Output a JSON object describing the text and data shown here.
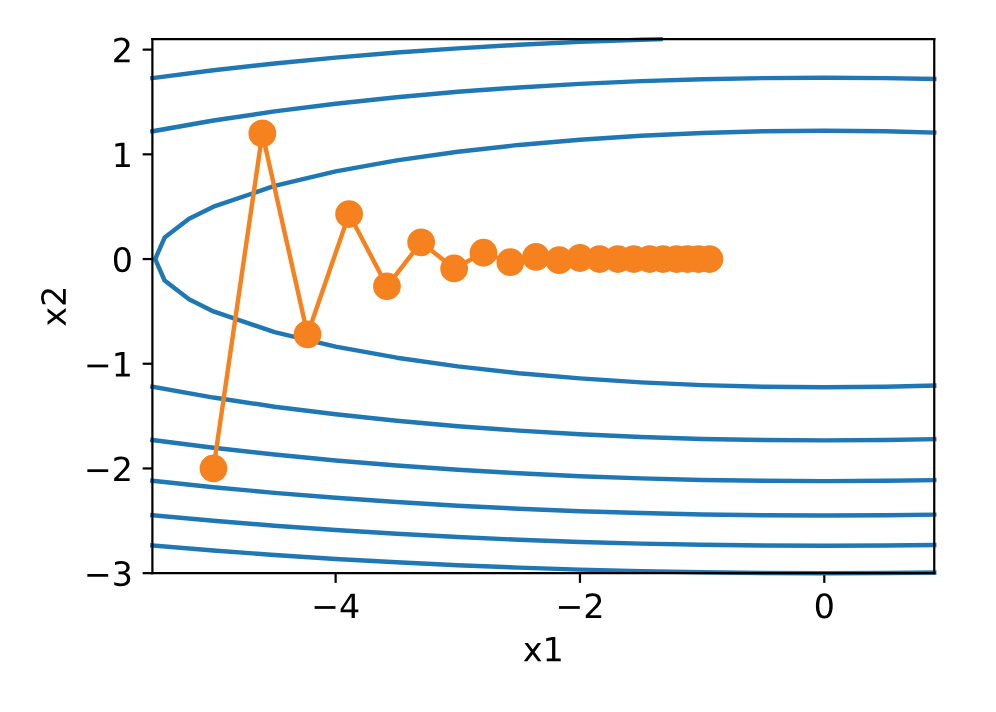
{
  "chart_data": {
    "type": "line",
    "xlabel": "x1",
    "ylabel": "x2",
    "xlim": [
      -5.5,
      0.9
    ],
    "ylim": [
      -3,
      2.1
    ],
    "xticks": [
      {
        "value": -4,
        "label": "−4"
      },
      {
        "value": -2,
        "label": "−2"
      },
      0
    ],
    "yticks": [
      {
        "value": -3,
        "label": "−3"
      },
      {
        "value": -2,
        "label": "−2"
      },
      {
        "value": -1,
        "label": "−1"
      },
      0,
      1,
      2
    ],
    "grid": false,
    "legend": false,
    "line_style": "solid",
    "series": [
      {
        "color": "#1f77b4",
        "marker": "none",
        "x": [
          0.9,
          0.5,
          0,
          -0.5,
          -1,
          -1.5,
          -2,
          -2.5,
          -3,
          -3.5,
          -4,
          -4.5,
          -5,
          -5.2,
          -5.4,
          -5.477,
          -5.4,
          -5.2,
          -5,
          -4.5,
          -4,
          -3.5,
          -3,
          -2.5,
          -2,
          -1.5,
          -1,
          -0.5,
          0,
          0.5,
          0.9
        ],
        "values": [
          1.208,
          1.22,
          1.225,
          1.22,
          1.204,
          1.178,
          1.14,
          1.09,
          1.025,
          0.942,
          0.837,
          0.698,
          0.5,
          0.385,
          0.205,
          0,
          -0.205,
          -0.385,
          -0.5,
          -0.698,
          -0.837,
          -0.942,
          -1.025,
          -1.09,
          -1.14,
          -1.178,
          -1.204,
          -1.22,
          -1.225,
          -1.22,
          -1.208
        ]
      },
      {
        "color": "#1f77b4",
        "marker": "none",
        "x": [
          -5.5,
          -5,
          -4.5,
          -4,
          -3.5,
          -3,
          -2.5,
          -2,
          -1.5,
          -1,
          -0.5,
          0,
          0.5,
          0.9
        ],
        "values": [
          1.22,
          1.323,
          1.41,
          1.483,
          1.545,
          1.597,
          1.639,
          1.673,
          1.699,
          1.718,
          1.728,
          1.732,
          1.728,
          1.72
        ]
      },
      {
        "color": "#1f77b4",
        "marker": "none",
        "x": [
          -5.5,
          -5,
          -4.5,
          -4,
          -3.5,
          -3,
          -2.5,
          -2,
          -1.5,
          -1,
          -0.5,
          0,
          0.5,
          0.9
        ],
        "values": [
          -1.22,
          -1.323,
          -1.41,
          -1.483,
          -1.545,
          -1.597,
          -1.639,
          -1.673,
          -1.699,
          -1.718,
          -1.728,
          -1.732,
          -1.728,
          -1.72
        ]
      },
      {
        "color": "#1f77b4",
        "marker": "none",
        "x": [
          -5.5,
          -5,
          -4.5,
          -4,
          -3.5,
          -3,
          -2.5,
          -2,
          -1.5,
          -1.34
        ],
        "values": [
          1.728,
          1.803,
          1.867,
          1.924,
          1.972,
          2.012,
          2.046,
          2.074,
          2.095,
          2.1
        ]
      },
      {
        "color": "#1f77b4",
        "marker": "none",
        "x": [
          -5.5,
          -5,
          -4.5,
          -4,
          -3.5,
          -3,
          -2.5,
          -2,
          -1.5,
          -1,
          -0.5,
          0,
          0.5,
          0.9
        ],
        "values": [
          -1.728,
          -1.803,
          -1.867,
          -1.924,
          -1.972,
          -2.012,
          -2.046,
          -2.074,
          -2.095,
          -2.11,
          -2.118,
          -2.121,
          -2.118,
          -2.112
        ]
      },
      {
        "color": "#1f77b4",
        "marker": "none",
        "x": [
          -5.5,
          -5,
          -4.5,
          -4,
          -3.5,
          -3,
          -2.5,
          -2,
          -1.5,
          -1,
          -0.5,
          0,
          0.5,
          0.9
        ],
        "values": [
          -2.118,
          -2.179,
          -2.233,
          -2.28,
          -2.321,
          -2.356,
          -2.385,
          -2.408,
          -2.426,
          -2.439,
          -2.447,
          -2.449,
          -2.447,
          -2.441
        ]
      },
      {
        "color": "#1f77b4",
        "marker": "none",
        "x": [
          -5.5,
          -5,
          -4.5,
          -4,
          -3.5,
          -3,
          -2.5,
          -2,
          -1.5,
          -1,
          -0.5,
          0,
          0.5,
          0.9
        ],
        "values": [
          -2.447,
          -2.5,
          -2.547,
          -2.588,
          -2.624,
          -2.655,
          -2.681,
          -2.702,
          -2.718,
          -2.729,
          -2.736,
          -2.739,
          -2.736,
          -2.731
        ]
      },
      {
        "color": "#1f77b4",
        "marker": "none",
        "x": [
          -5.5,
          -5,
          -4.5,
          -4,
          -3.5,
          -3,
          -2.5,
          -2,
          -1.5,
          -1,
          -0.5,
          0,
          0.5,
          0.9
        ],
        "values": [
          -2.736,
          -2.784,
          -2.826,
          -2.864,
          -2.896,
          -2.924,
          -2.947,
          -2.966,
          -2.981,
          -2.992,
          -2.998,
          -3.0,
          -2.998,
          -2.993
        ]
      },
      {
        "color": "#f5821f",
        "marker": "circle",
        "x": [
          -5.0,
          -4.6,
          -4.23,
          -3.89,
          -3.58,
          -3.3,
          -3.03,
          -2.79,
          -2.57,
          -2.36,
          -2.17,
          -2.0,
          -1.84,
          -1.69,
          -1.56,
          -1.43,
          -1.32,
          -1.21,
          -1.12,
          -1.03,
          -0.94
        ],
        "values": [
          -2.0,
          1.2,
          -0.72,
          0.43,
          -0.26,
          0.16,
          -0.09,
          0.06,
          -0.03,
          0.02,
          -0.01,
          0.01,
          0.0,
          0.0,
          0.0,
          0.0,
          0.0,
          0.0,
          0.0,
          0.0,
          0.0
        ]
      }
    ]
  }
}
